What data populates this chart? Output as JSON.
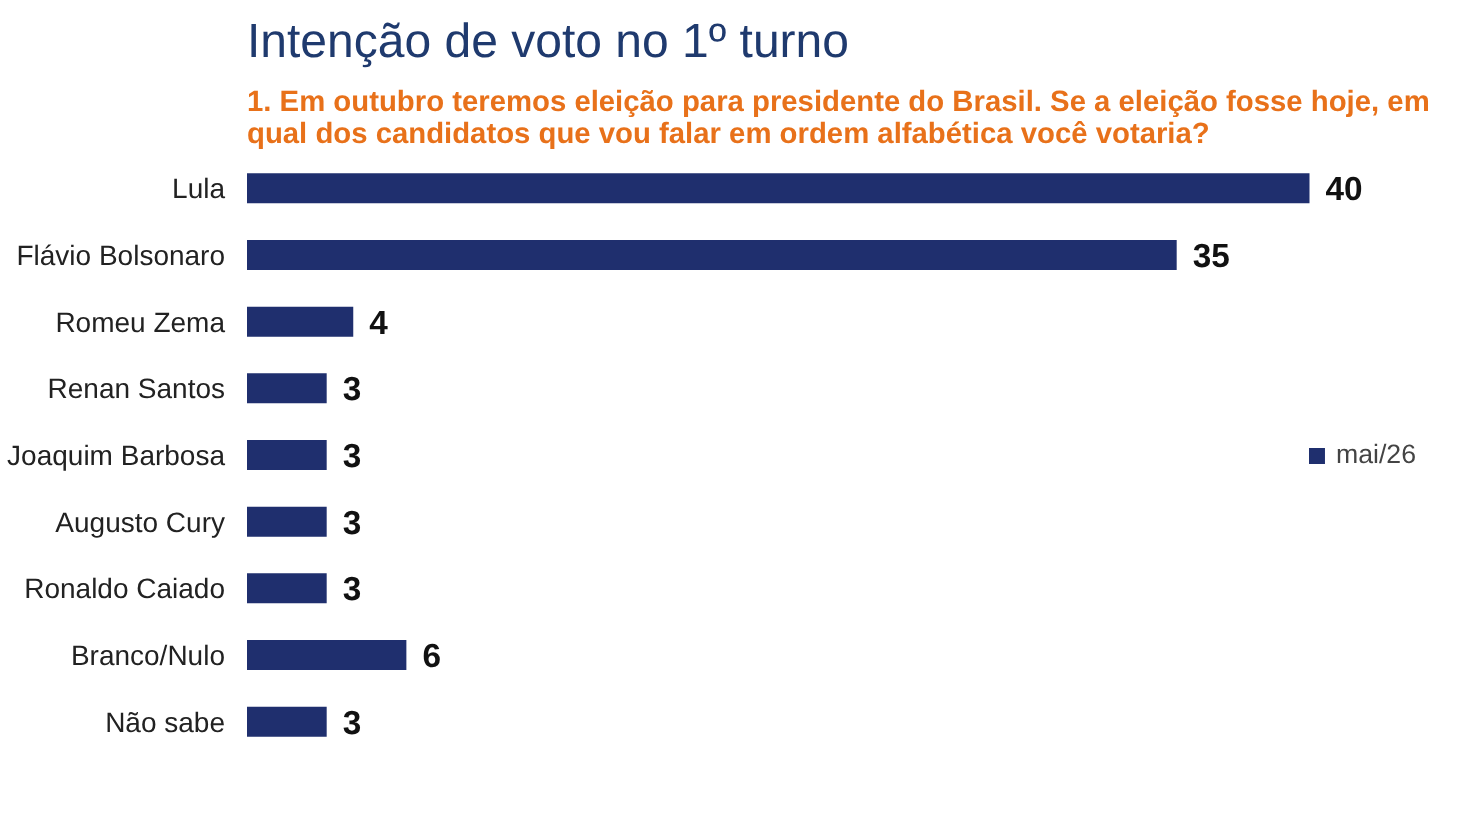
{
  "chart_data": {
    "type": "bar",
    "orientation": "horizontal",
    "title": "Intenção de voto no 1º turno",
    "subtitle": "1. Em outubro teremos eleição para presidente do Brasil. Se a eleição fosse hoje, em qual dos candidatos que vou falar em ordem alfabética você votaria?",
    "categories": [
      "Lula",
      "Flávio Bolsonaro",
      "Romeu Zema",
      "Renan Santos",
      "Joaquim Barbosa",
      "Augusto Cury",
      "Ronaldo Caiado",
      "Branco/Nulo",
      "Não sabe"
    ],
    "series": [
      {
        "name": "mai/26",
        "color": "#1f2f6e",
        "values": [
          40,
          35,
          4,
          3,
          3,
          3,
          3,
          6,
          3
        ]
      }
    ],
    "data_labels": true,
    "legend": "right",
    "grid": false
  }
}
